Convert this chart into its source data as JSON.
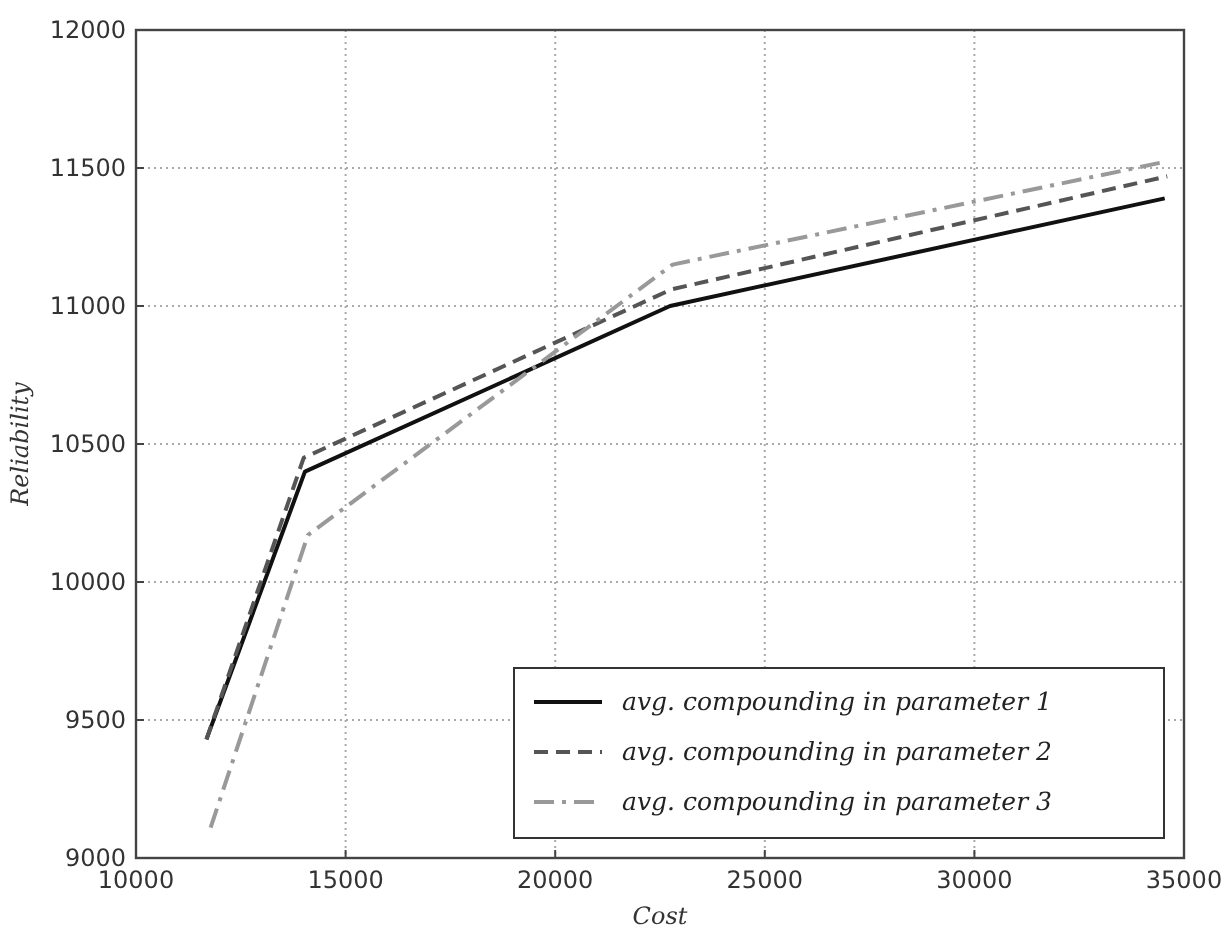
{
  "chart_data": {
    "type": "line",
    "xlabel": "Cost",
    "ylabel": "Reliability",
    "xlim": [
      10000,
      35000
    ],
    "xticks": [
      10000,
      15000,
      20000,
      25000,
      30000,
      35000
    ],
    "ylim": [
      9000,
      12000
    ],
    "yticks": [
      9000,
      9500,
      10000,
      10500,
      11000,
      11500,
      12000
    ],
    "grid": true,
    "legend": "bottom right",
    "series": [
      {
        "name": "avg. compounding in parameter 1",
        "color": "#111111",
        "line_style": "solid",
        "x": [
          11680,
          14030,
          22740,
          34540
        ],
        "values": [
          9430,
          10400,
          11000,
          11390
        ]
      },
      {
        "name": "avg. compounding in parameter 2",
        "color": "#555555",
        "line_style": "dashed",
        "x": [
          11680,
          14000,
          22770,
          34600
        ],
        "values": [
          9430,
          10450,
          11060,
          11470
        ]
      },
      {
        "name": "avg. compounding in parameter 3",
        "color": "#999999",
        "line_style": "dashdot",
        "x": [
          11780,
          14100,
          22800,
          34470
        ],
        "values": [
          9110,
          10170,
          11150,
          11520
        ]
      }
    ]
  }
}
